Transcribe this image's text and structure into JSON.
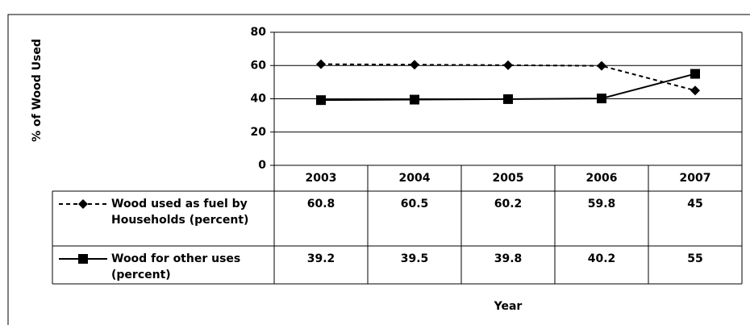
{
  "chart_data": {
    "type": "line",
    "y_label": "% of Wood Used",
    "x_label": "Year",
    "categories": [
      "2003",
      "2004",
      "2005",
      "2006",
      "2007"
    ],
    "series": [
      {
        "name": "Wood used as fuel by Households (percent)",
        "color": "#000000",
        "dash": true,
        "marker": "diamond",
        "values": [
          60.8,
          60.5,
          60.2,
          59.8,
          45
        ]
      },
      {
        "name": "Wood for other uses (percent)",
        "color": "#000000",
        "dash": false,
        "marker": "square",
        "values": [
          39.2,
          39.5,
          39.8,
          40.2,
          55
        ]
      }
    ],
    "ylim": [
      0,
      80
    ],
    "yticks": [
      0,
      20,
      40,
      60,
      80
    ],
    "grid": true
  }
}
